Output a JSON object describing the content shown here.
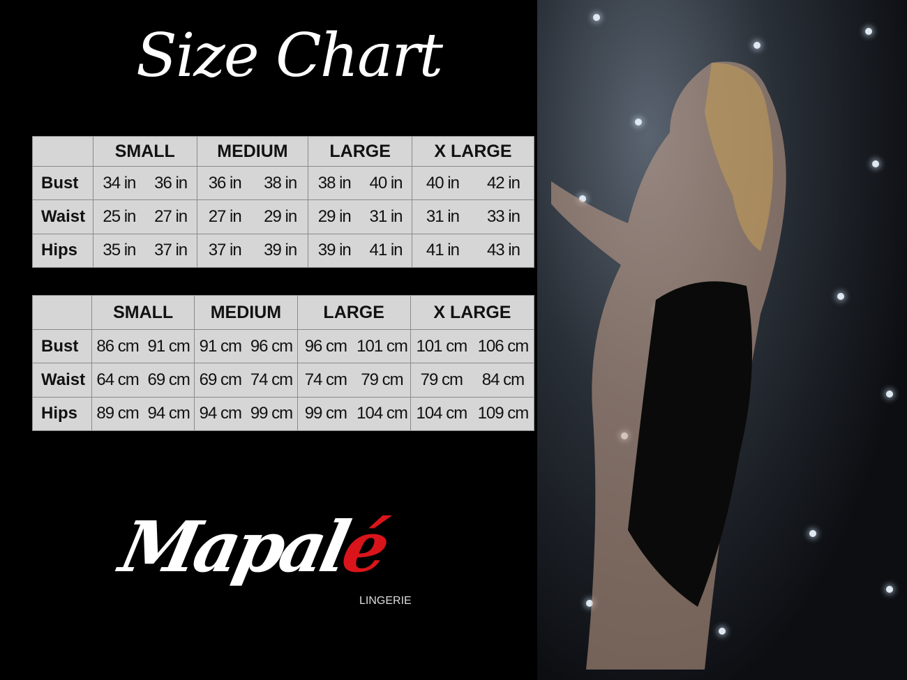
{
  "title": "Size Chart",
  "sizes": [
    "SMALL",
    "MEDIUM",
    "LARGE",
    "X LARGE"
  ],
  "inches_table": {
    "rows": [
      {
        "label": "Bust",
        "values": [
          "34 in",
          "36 in",
          "36 in",
          "38 in",
          "38 in",
          "40 in",
          "40 in",
          "42 in"
        ]
      },
      {
        "label": "Waist",
        "values": [
          "25 in",
          "27 in",
          "27 in",
          "29 in",
          "29 in",
          "31 in",
          "31 in",
          "33 in"
        ]
      },
      {
        "label": "Hips",
        "values": [
          "35 in",
          "37 in",
          "37 in",
          "39 in",
          "39 in",
          "41 in",
          "41 in",
          "43 in"
        ]
      }
    ]
  },
  "cm_table": {
    "rows": [
      {
        "label": "Bust",
        "values": [
          "86 cm",
          "91 cm",
          "91 cm",
          "96 cm",
          "96 cm",
          "101 cm",
          "101 cm",
          "106 cm"
        ]
      },
      {
        "label": "Waist",
        "values": [
          "64 cm",
          "69 cm",
          "69 cm",
          "74 cm",
          "74 cm",
          "79 cm",
          "79 cm",
          "84 cm"
        ]
      },
      {
        "label": "Hips",
        "values": [
          "89 cm",
          "94 cm",
          "94 cm",
          "99 cm",
          "99 cm",
          "104 cm",
          "104 cm",
          "109 cm"
        ]
      }
    ]
  },
  "logo": {
    "word": "Mapalé",
    "main": "Mapal",
    "accent": "é",
    "subtitle": "LINGERIE"
  },
  "colors": {
    "background": "#000000",
    "table": "#d6d6d6",
    "logo_accent": "#d9151b"
  }
}
